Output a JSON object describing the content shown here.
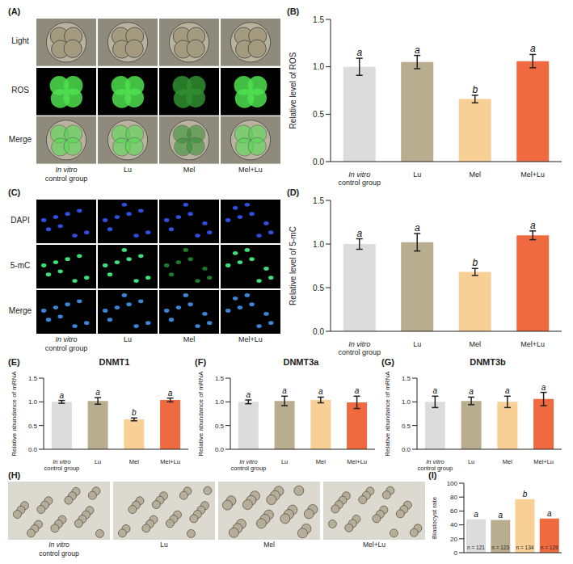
{
  "chart_data": [
    {
      "type": "image",
      "panel": "(A)",
      "row_labels": [
        "Light",
        "ROS",
        "Merge"
      ],
      "column_labels": [
        "In vitro control group",
        "Lu",
        "Mel",
        "Mel+Lu"
      ]
    },
    {
      "type": "bar",
      "panel": "(B)",
      "y_label": "Relative level of ROS",
      "categories": [
        "In vitro control group",
        "Lu",
        "Mel",
        "Mel+Lu"
      ],
      "values": [
        1.0,
        1.05,
        0.66,
        1.06
      ],
      "errors": [
        0.09,
        0.07,
        0.04,
        0.07
      ],
      "annotations": [
        "a",
        "a",
        "b",
        "a"
      ],
      "colors": [
        "#dcdcdc",
        "#b8ad8f",
        "#f8cf95",
        "#ef6a3e"
      ],
      "ylim": [
        0,
        1.5
      ],
      "yticks": [
        {
          "value": 0,
          "label": "0.0"
        },
        {
          "value": 0.5,
          "label": "0.5"
        },
        {
          "value": 1,
          "label": "1.0"
        },
        {
          "value": 1.5,
          "label": "1.5"
        }
      ]
    },
    {
      "type": "image",
      "panel": "(C)",
      "row_labels": [
        "DAPI",
        "5-mC",
        "Merge"
      ],
      "column_labels": [
        "In vitro control group",
        "Lu",
        "Mel",
        "Mel+Lu"
      ]
    },
    {
      "type": "bar",
      "panel": "(D)",
      "y_label": "Relative level of 5-mC",
      "categories": [
        "In vitro control group",
        "Lu",
        "Mel",
        "Mel+Lu"
      ],
      "values": [
        1.0,
        1.02,
        0.68,
        1.1
      ],
      "errors": [
        0.06,
        0.1,
        0.04,
        0.05
      ],
      "annotations": [
        "a",
        "a",
        "b",
        "a"
      ],
      "colors": [
        "#dcdcdc",
        "#b8ad8f",
        "#f8cf95",
        "#ef6a3e"
      ],
      "ylim": [
        0,
        1.5
      ],
      "yticks": [
        {
          "value": 0,
          "label": "0.0"
        },
        {
          "value": 0.5,
          "label": "0.5"
        },
        {
          "value": 1,
          "label": "1.0"
        },
        {
          "value": 1.5,
          "label": "1.5"
        }
      ]
    },
    {
      "type": "bar",
      "panel": "(E)",
      "title": "DNMT1",
      "y_label": "Relative abundance of mRNA",
      "categories": [
        "In vitro control group",
        "Lu",
        "Mel",
        "Mel+Lu"
      ],
      "values": [
        1.0,
        1.02,
        0.63,
        1.04
      ],
      "errors": [
        0.03,
        0.07,
        0.03,
        0.04
      ],
      "annotations": [
        "a",
        "a",
        "b",
        "a"
      ],
      "colors": [
        "#dcdcdc",
        "#b8ad8f",
        "#f8cf95",
        "#ef6a3e"
      ],
      "ylim": [
        0,
        1.5
      ],
      "yticks": [
        {
          "value": 0,
          "label": "0.0"
        },
        {
          "value": 0.5,
          "label": "0.5"
        },
        {
          "value": 1,
          "label": "1.0"
        },
        {
          "value": 1.5,
          "label": "1.5"
        }
      ]
    },
    {
      "type": "bar",
      "panel": "(F)",
      "title": "DNMT3a",
      "y_label": "Relative abundance of mRNA",
      "categories": [
        "In vitro control group",
        "Lu",
        "Mel",
        "Mel+Lu"
      ],
      "values": [
        1.0,
        1.02,
        1.04,
        0.99
      ],
      "errors": [
        0.04,
        0.1,
        0.06,
        0.13
      ],
      "annotations": [
        "a",
        "a",
        "a",
        "a"
      ],
      "colors": [
        "#dcdcdc",
        "#b8ad8f",
        "#f8cf95",
        "#ef6a3e"
      ],
      "ylim": [
        0,
        1.5
      ],
      "yticks": [
        {
          "value": 0,
          "label": "0.0"
        },
        {
          "value": 0.5,
          "label": "0.5"
        },
        {
          "value": 1,
          "label": "1.0"
        },
        {
          "value": 1.5,
          "label": "1.5"
        }
      ]
    },
    {
      "type": "bar",
      "panel": "(G)",
      "title": "DNMT3b",
      "y_label": "Relative abundance of mRNA",
      "categories": [
        "In vitro control group",
        "Lu",
        "Mel",
        "Mel+Lu"
      ],
      "values": [
        1.0,
        1.02,
        1.0,
        1.06
      ],
      "errors": [
        0.12,
        0.08,
        0.12,
        0.14
      ],
      "annotations": [
        "a",
        "a",
        "a",
        "a"
      ],
      "colors": [
        "#dcdcdc",
        "#b8ad8f",
        "#f8cf95",
        "#ef6a3e"
      ],
      "ylim": [
        0,
        1.5
      ],
      "yticks": [
        {
          "value": 0,
          "label": "0.0"
        },
        {
          "value": 0.5,
          "label": "0.5"
        },
        {
          "value": 1,
          "label": "1.0"
        },
        {
          "value": 1.5,
          "label": "1.5"
        }
      ]
    },
    {
      "type": "image",
      "panel": "(H)",
      "column_labels": [
        "In vitro control group",
        "Lu",
        "Mel",
        "Mel+Lu"
      ]
    },
    {
      "type": "bar",
      "panel": "(I)",
      "y_label": "Blastocyst rate",
      "categories": [
        null,
        null,
        null,
        null
      ],
      "values": [
        48,
        47,
        77,
        49
      ],
      "n_labels": [
        "n = 121",
        "n = 123",
        "n = 134",
        "n = 129"
      ],
      "annotations": [
        "a",
        "a",
        "b",
        "a"
      ],
      "colors": [
        "#dcdcdc",
        "#b8ad8f",
        "#f8cf95",
        "#ef6a3e"
      ],
      "ylim": [
        0,
        100
      ],
      "yticks": [
        0,
        20,
        40,
        60,
        80,
        100
      ]
    }
  ]
}
